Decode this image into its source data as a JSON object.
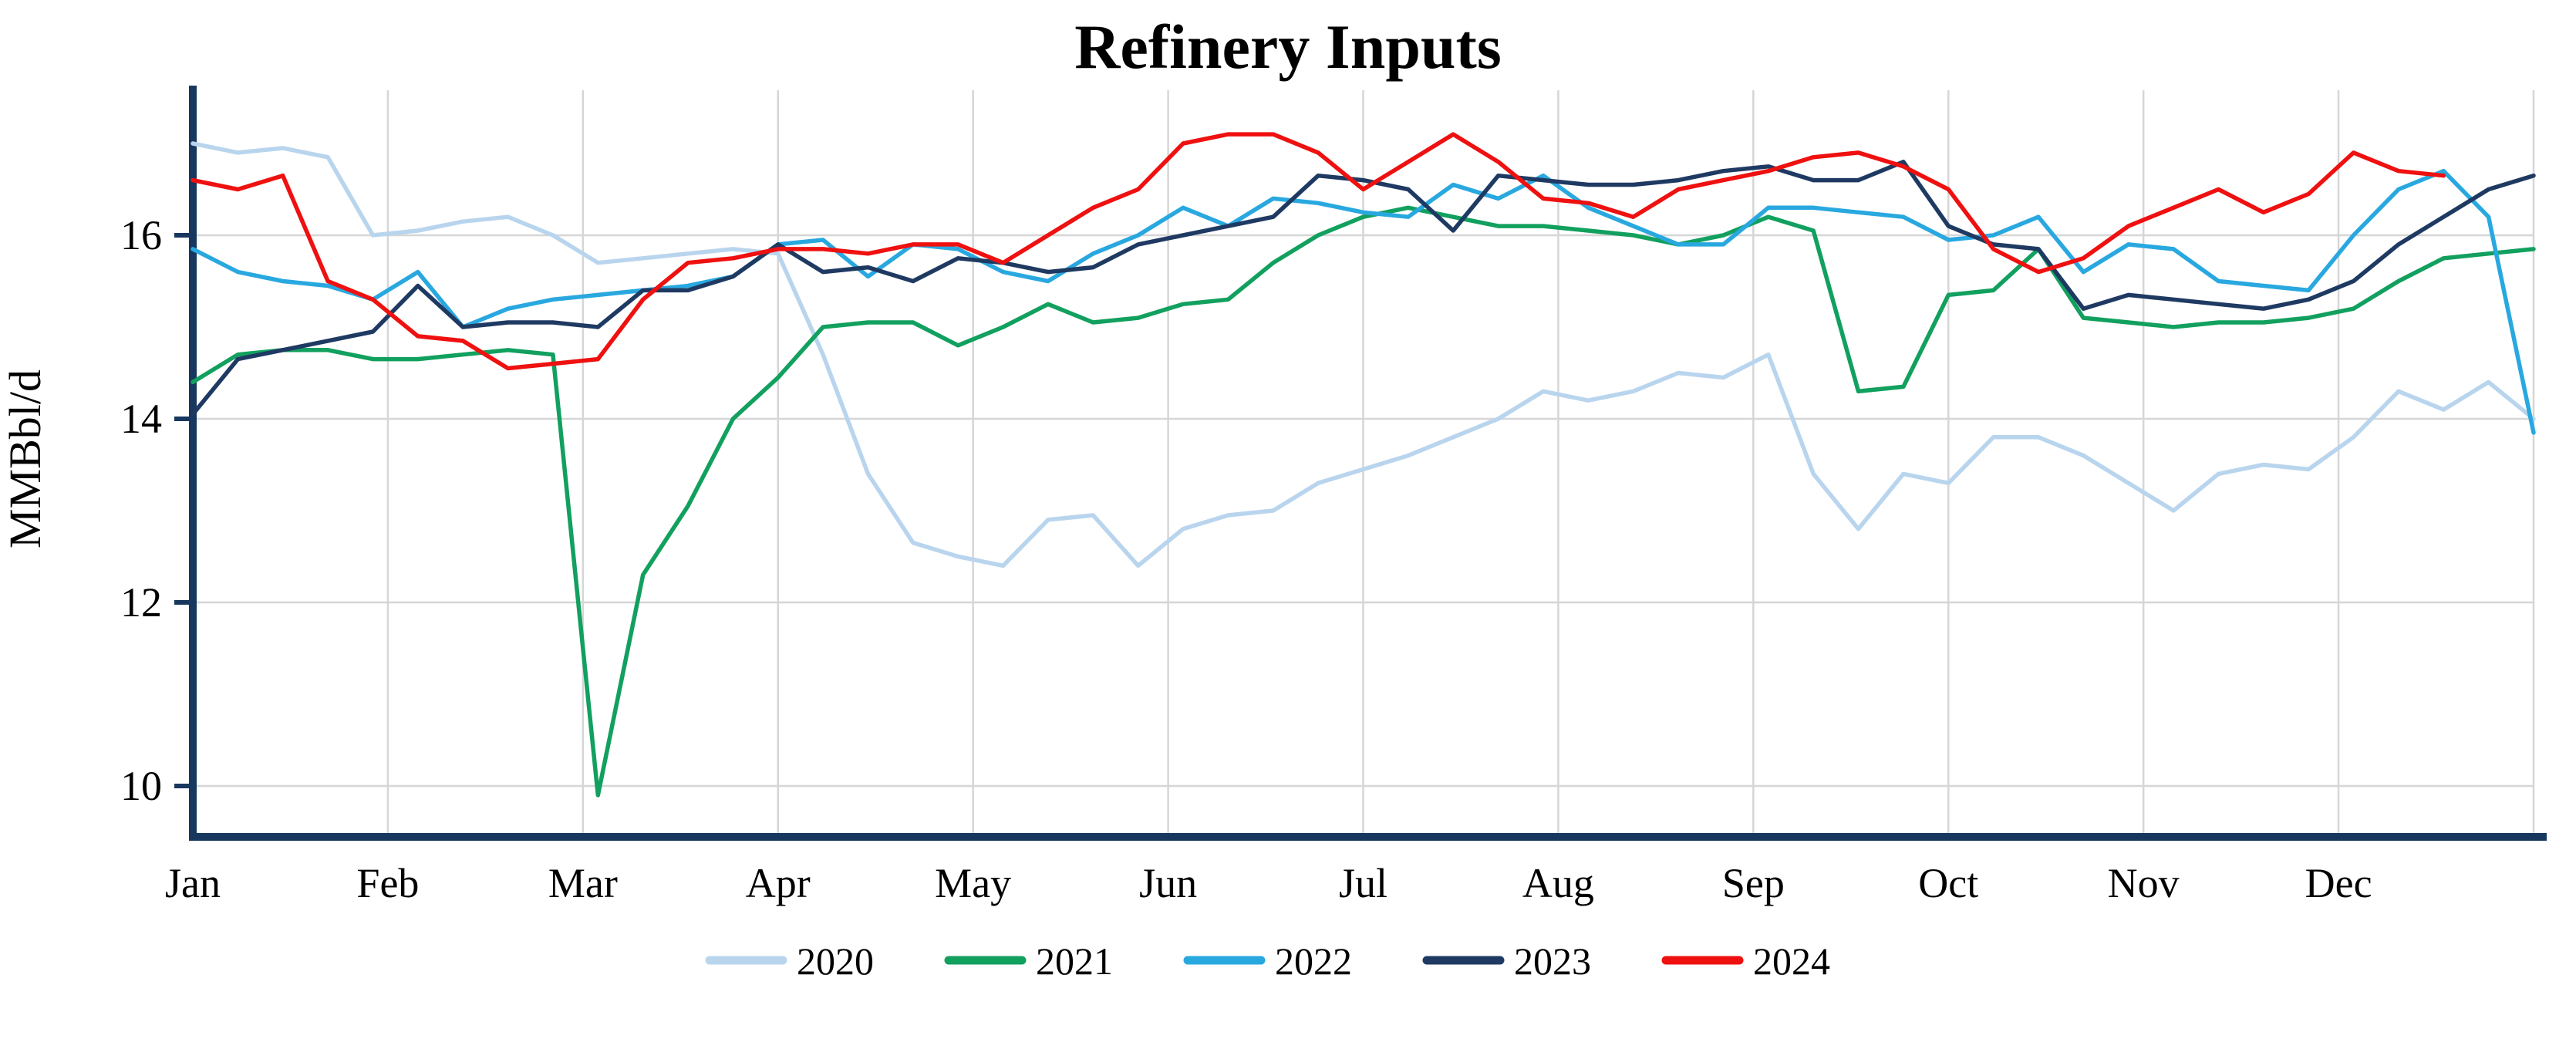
{
  "chart_data": {
    "type": "line",
    "title": "Refinery Inputs",
    "ylabel": "MMBbl/d",
    "xlabel": "",
    "x_mode": "weekly",
    "weeks_per_year": 52,
    "months": [
      "Jan",
      "Feb",
      "Mar",
      "Apr",
      "May",
      "Jun",
      "Jul",
      "Aug",
      "Sep",
      "Oct",
      "Nov",
      "Dec"
    ],
    "yticks": [
      10,
      12,
      14,
      16
    ],
    "ylim": [
      9.4,
      17.6
    ],
    "grid": true,
    "legend_position": "bottom",
    "colors": {
      "axis": "#17375e",
      "grid": "#d6d6d6",
      "text": "#000000"
    },
    "series": [
      {
        "name": "2020",
        "color": "#b9d5ee",
        "values": [
          17.0,
          16.9,
          16.95,
          16.85,
          16.0,
          16.05,
          16.15,
          16.2,
          16.0,
          15.7,
          15.75,
          15.8,
          15.85,
          15.8,
          14.7,
          13.4,
          12.65,
          12.5,
          12.4,
          12.9,
          12.95,
          12.4,
          12.8,
          12.95,
          13.0,
          13.3,
          13.45,
          13.6,
          13.8,
          14.0,
          14.3,
          14.2,
          14.3,
          14.5,
          14.45,
          14.7,
          13.4,
          12.8,
          13.4,
          13.3,
          13.8,
          13.8,
          13.6,
          13.3,
          13.0,
          13.4,
          13.5,
          13.45,
          13.8,
          14.3,
          14.1,
          14.4,
          14.0
        ]
      },
      {
        "name": "2021",
        "color": "#12a05f",
        "values": [
          14.4,
          14.7,
          14.75,
          14.75,
          14.65,
          14.65,
          14.7,
          14.75,
          14.7,
          9.9,
          12.3,
          13.05,
          14.0,
          14.45,
          15.0,
          15.05,
          15.05,
          14.8,
          15.0,
          15.25,
          15.05,
          15.1,
          15.25,
          15.3,
          15.7,
          16.0,
          16.2,
          16.3,
          16.2,
          16.1,
          16.1,
          16.05,
          16.0,
          15.9,
          16.0,
          16.2,
          16.05,
          14.3,
          14.35,
          15.35,
          15.4,
          15.85,
          15.1,
          15.05,
          15.0,
          15.05,
          15.05,
          15.1,
          15.2,
          15.5,
          15.75,
          15.8,
          15.85
        ]
      },
      {
        "name": "2022",
        "color": "#29a8e0",
        "values": [
          15.85,
          15.6,
          15.5,
          15.45,
          15.3,
          15.6,
          15.0,
          15.2,
          15.3,
          15.35,
          15.4,
          15.45,
          15.55,
          15.9,
          15.95,
          15.55,
          15.9,
          15.85,
          15.6,
          15.5,
          15.8,
          16.0,
          16.3,
          16.1,
          16.4,
          16.35,
          16.25,
          16.2,
          16.55,
          16.4,
          16.65,
          16.3,
          16.1,
          15.9,
          15.9,
          16.3,
          16.3,
          16.25,
          16.2,
          15.95,
          16.0,
          16.2,
          15.6,
          15.9,
          15.85,
          15.5,
          15.45,
          15.4,
          16.0,
          16.5,
          16.7,
          16.2,
          13.85
        ]
      },
      {
        "name": "2023",
        "color": "#1f3a62",
        "values": [
          14.05,
          14.65,
          14.75,
          14.85,
          14.95,
          15.45,
          15.0,
          15.05,
          15.05,
          15.0,
          15.4,
          15.4,
          15.55,
          15.9,
          15.6,
          15.65,
          15.5,
          15.75,
          15.7,
          15.6,
          15.65,
          15.9,
          16.0,
          16.1,
          16.2,
          16.65,
          16.6,
          16.5,
          16.05,
          16.65,
          16.6,
          16.55,
          16.55,
          16.6,
          16.7,
          16.75,
          16.6,
          16.6,
          16.8,
          16.1,
          15.9,
          15.85,
          15.2,
          15.35,
          15.3,
          15.25,
          15.2,
          15.3,
          15.5,
          15.9,
          16.2,
          16.5,
          16.65
        ]
      },
      {
        "name": "2024",
        "color": "#ef1010",
        "values": [
          16.6,
          16.5,
          16.65,
          15.5,
          15.3,
          14.9,
          14.85,
          14.55,
          14.6,
          14.65,
          15.3,
          15.7,
          15.75,
          15.85,
          15.85,
          15.8,
          15.9,
          15.9,
          15.7,
          16.0,
          16.3,
          16.5,
          17.0,
          17.1,
          17.1,
          16.9,
          16.5,
          16.8,
          17.1,
          16.8,
          16.4,
          16.35,
          16.2,
          16.5,
          16.6,
          16.7,
          16.85,
          16.9,
          16.75,
          16.5,
          15.85,
          15.6,
          15.75,
          16.1,
          16.3,
          16.5,
          16.25,
          16.45,
          16.9,
          16.7,
          16.65
        ]
      }
    ]
  }
}
